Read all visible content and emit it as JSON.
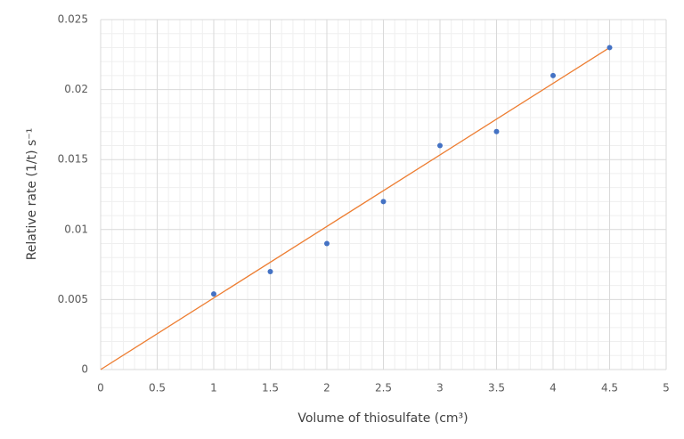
{
  "chart_data": {
    "type": "scatter",
    "xlabel": "Volume of thiosulfate (cm³)",
    "ylabel": "Relative rate (1/t) s⁻¹",
    "series": [
      {
        "color": "#4472c4",
        "x": [
          1,
          1.5,
          2,
          2.5,
          3,
          3.5,
          4,
          4.5
        ],
        "values": [
          0.0054,
          0.007,
          0.009,
          0.012,
          0.016,
          0.017,
          0.021,
          0.023
        ]
      }
    ],
    "trendline": {
      "color": "#ed7d31",
      "x": [
        0,
        4.5
      ],
      "values": [
        0,
        0.023
      ]
    },
    "xlim": [
      0,
      5
    ],
    "xticks": [
      0,
      0.5,
      1,
      1.5,
      2,
      2.5,
      3,
      3.5,
      4,
      4.5,
      5
    ],
    "ylim": [
      0,
      0.025
    ],
    "yticks": [
      0,
      0.005,
      0.01,
      0.015,
      0.02,
      0.025
    ],
    "grid": true,
    "minor_grid": true
  }
}
